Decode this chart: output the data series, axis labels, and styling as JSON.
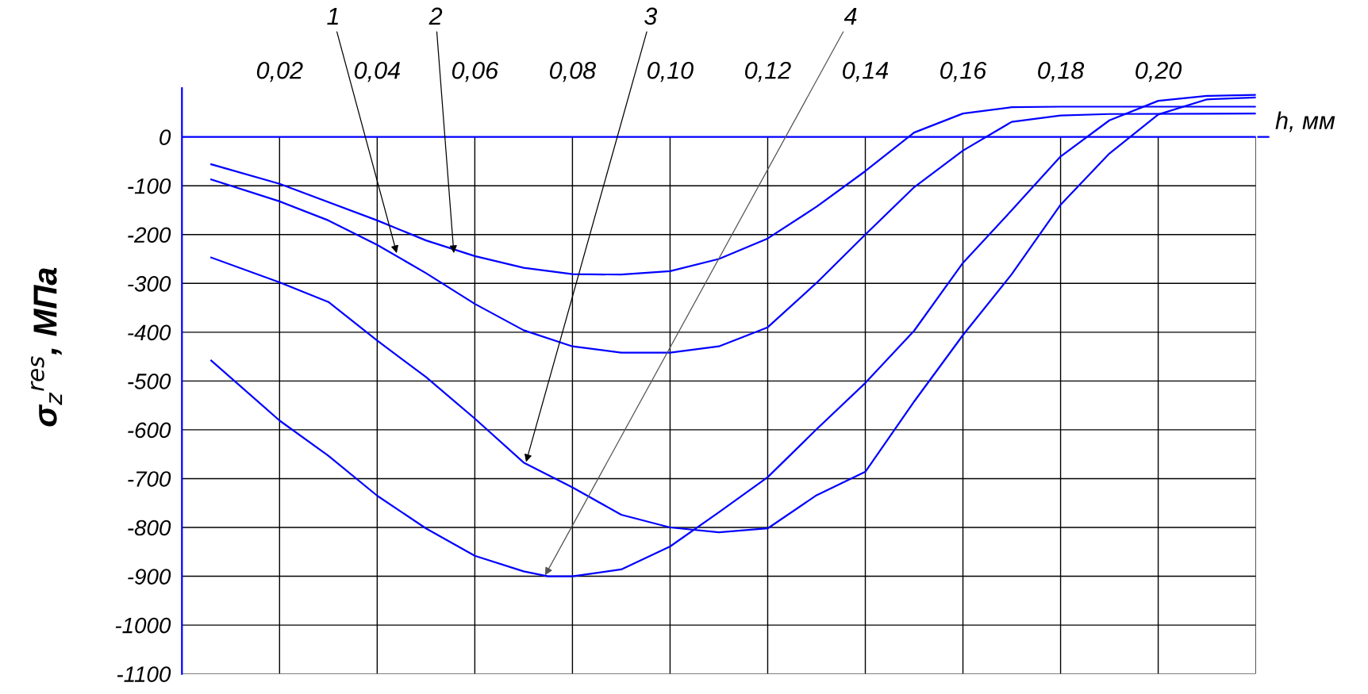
{
  "chart_data": {
    "type": "line",
    "xlabel": "h, мм",
    "ylabel": "σ$_{z}$$^{res}$, МПа",
    "xlim": [
      0,
      0.22
    ],
    "ylim": [
      -1100,
      100
    ],
    "xticks": [
      {
        "value": 0.02,
        "label": "0,02"
      },
      {
        "value": 0.04,
        "label": "0,04"
      },
      {
        "value": 0.06,
        "label": "0,06"
      },
      {
        "value": 0.08,
        "label": "0,08"
      },
      {
        "value": 0.1,
        "label": "0,10"
      },
      {
        "value": 0.12,
        "label": "0,12"
      },
      {
        "value": 0.14,
        "label": "0,14"
      },
      {
        "value": 0.16,
        "label": "0,16"
      },
      {
        "value": 0.18,
        "label": "0,18"
      },
      {
        "value": 0.2,
        "label": "0,20"
      },
      {
        "value": 0.22,
        "label": null
      }
    ],
    "yticks": [
      0,
      -100,
      -200,
      -300,
      -400,
      -500,
      -600,
      -700,
      -800,
      -900,
      -1000,
      -1100
    ],
    "grid": true,
    "marker": "none",
    "line_style": "solid",
    "series": [
      {
        "color": "#0000ff",
        "x": [
          0.006,
          0.02,
          0.03,
          0.04,
          0.05,
          0.06,
          0.07,
          0.08,
          0.09,
          0.1,
          0.11,
          0.12,
          0.13,
          0.14,
          0.15,
          0.16,
          0.17,
          0.18,
          0.19,
          0.22
        ],
        "values": [
          -87,
          -132,
          -171,
          -221,
          -279,
          -342,
          -396,
          -429,
          -442,
          -442,
          -429,
          -390,
          -299,
          -200,
          -103,
          -28,
          31,
          44,
          47,
          48
        ]
      },
      {
        "color": "#0000ff",
        "x": [
          0.006,
          0.02,
          0.04,
          0.05,
          0.06,
          0.07,
          0.08,
          0.09,
          0.1,
          0.11,
          0.12,
          0.13,
          0.14,
          0.15,
          0.16,
          0.17,
          0.18,
          0.22
        ],
        "values": [
          -56,
          -96,
          -171,
          -212,
          -244,
          -268,
          -281,
          -282,
          -275,
          -250,
          -208,
          -143,
          -70,
          9,
          48,
          61,
          62,
          62
        ]
      },
      {
        "color": "#0000ff",
        "x": [
          0.006,
          0.02,
          0.03,
          0.04,
          0.05,
          0.06,
          0.07,
          0.08,
          0.09,
          0.1,
          0.11,
          0.12,
          0.13,
          0.14,
          0.15,
          0.16,
          0.17,
          0.18,
          0.19,
          0.2,
          0.21,
          0.22
        ],
        "values": [
          -247,
          -298,
          -338,
          -417,
          -492,
          -577,
          -667,
          -718,
          -774,
          -800,
          -810,
          -802,
          -734,
          -686,
          -542,
          -406,
          -281,
          -139,
          -34,
          46,
          77,
          81
        ]
      },
      {
        "color": "#0000ff",
        "x": [
          0.006,
          0.02,
          0.03,
          0.04,
          0.05,
          0.06,
          0.07,
          0.075,
          0.08,
          0.09,
          0.1,
          0.11,
          0.12,
          0.13,
          0.14,
          0.15,
          0.16,
          0.17,
          0.18,
          0.19,
          0.2,
          0.21,
          0.22
        ],
        "values": [
          -458,
          -581,
          -653,
          -735,
          -802,
          -858,
          -890,
          -900,
          -900,
          -886,
          -839,
          -769,
          -697,
          -599,
          -504,
          -397,
          -258,
          -150,
          -40,
          34,
          74,
          84,
          86
        ]
      }
    ],
    "annotations": [
      {
        "text": "1",
        "x": 0.044,
        "y": -238
      },
      {
        "text": "2",
        "x": 0.0557,
        "y": -238
      },
      {
        "text": "3",
        "x": 0.0705,
        "y": -666
      },
      {
        "text": "4",
        "x": 0.0744,
        "y": -898
      }
    ]
  }
}
